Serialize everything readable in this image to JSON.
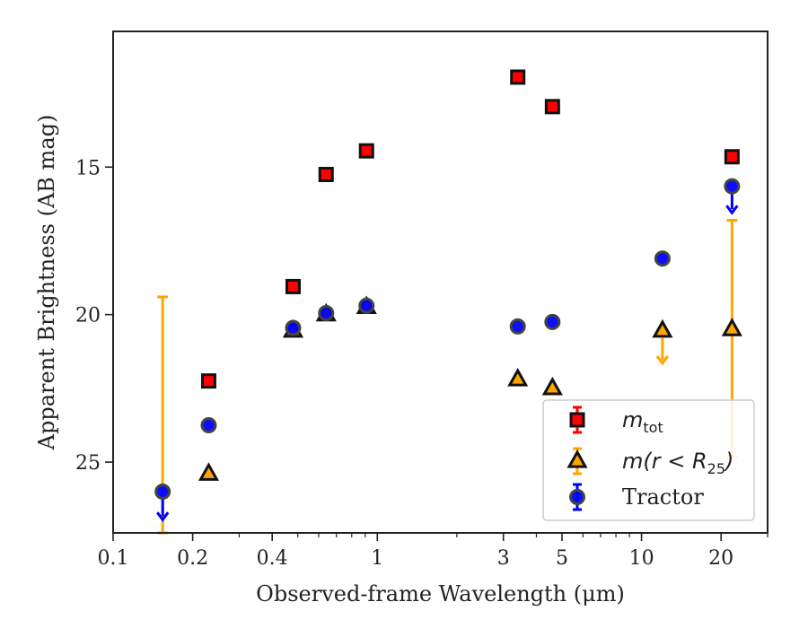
{
  "chart_data": {
    "type": "scatter",
    "title": "",
    "xlabel": "Observed-frame Wavelength (μm)",
    "ylabel": "Apparent Brightness (AB mag)",
    "xscale": "log",
    "xlim": [
      0.1,
      30
    ],
    "ylim": [
      27.4,
      10.4
    ],
    "y_inverted": true,
    "grid": false,
    "legend_position": "lower-right",
    "x_ticks": [
      {
        "value": 0.1,
        "label": "0.1"
      },
      {
        "value": 0.2,
        "label": "0.2"
      },
      {
        "value": 0.4,
        "label": "0.4"
      },
      {
        "value": 1,
        "label": "1"
      },
      {
        "value": 3,
        "label": "3"
      },
      {
        "value": 5,
        "label": "5"
      },
      {
        "value": 10,
        "label": "10"
      },
      {
        "value": 20,
        "label": "20"
      }
    ],
    "y_ticks": [
      {
        "value": 15,
        "label": "15"
      },
      {
        "value": 20,
        "label": "20"
      },
      {
        "value": 25,
        "label": "25"
      }
    ],
    "series": [
      {
        "name": "m_tot",
        "marker": "square",
        "color": "#ff0000",
        "edge": "#111111",
        "points": [
          {
            "x": 0.23,
            "y": 22.25
          },
          {
            "x": 0.48,
            "y": 19.05
          },
          {
            "x": 0.64,
            "y": 15.25
          },
          {
            "x": 0.91,
            "y": 14.45
          },
          {
            "x": 3.4,
            "y": 11.95
          },
          {
            "x": 4.6,
            "y": 12.95
          },
          {
            "x": 22,
            "y": 14.65
          }
        ]
      },
      {
        "name": "m(r < R25)",
        "marker": "triangle",
        "color": "#ffa500",
        "edge": "#111111",
        "points": [
          {
            "x": 0.23,
            "y": 25.4
          },
          {
            "x": 0.48,
            "y": 20.55
          },
          {
            "x": 0.64,
            "y": 20.0
          },
          {
            "x": 0.91,
            "y": 19.75
          },
          {
            "x": 3.4,
            "y": 22.2
          },
          {
            "x": 4.6,
            "y": 22.5
          },
          {
            "x": 12,
            "y": 20.55,
            "upper_limit": true,
            "arrow_to": 21.65
          },
          {
            "x": 22,
            "y": 20.5,
            "err_low": 16.8,
            "err_high": 24.8
          },
          {
            "x": 0.154,
            "y": null,
            "err_low": 19.4,
            "err_high": 27.4
          }
        ]
      },
      {
        "name": "Tractor",
        "marker": "circle",
        "color": "#0000ff",
        "edge": "#444444",
        "points": [
          {
            "x": 0.154,
            "y": 26.0,
            "upper_limit": true,
            "arrow_to": 26.95
          },
          {
            "x": 0.23,
            "y": 23.75
          },
          {
            "x": 0.48,
            "y": 20.45
          },
          {
            "x": 0.64,
            "y": 19.95
          },
          {
            "x": 0.91,
            "y": 19.7
          },
          {
            "x": 3.4,
            "y": 20.4
          },
          {
            "x": 4.6,
            "y": 20.25
          },
          {
            "x": 12,
            "y": 18.1
          },
          {
            "x": 22,
            "y": 15.65,
            "upper_limit": true,
            "arrow_to": 16.55
          }
        ]
      }
    ],
    "legend": [
      {
        "marker": "square",
        "main": "m",
        "sub": "tot",
        "suffix": ""
      },
      {
        "marker": "triangle",
        "main": "m(r < R",
        "sub": "25",
        "suffix": ")"
      },
      {
        "marker": "circle",
        "main": "Tractor",
        "sub": "",
        "suffix": ""
      }
    ]
  }
}
